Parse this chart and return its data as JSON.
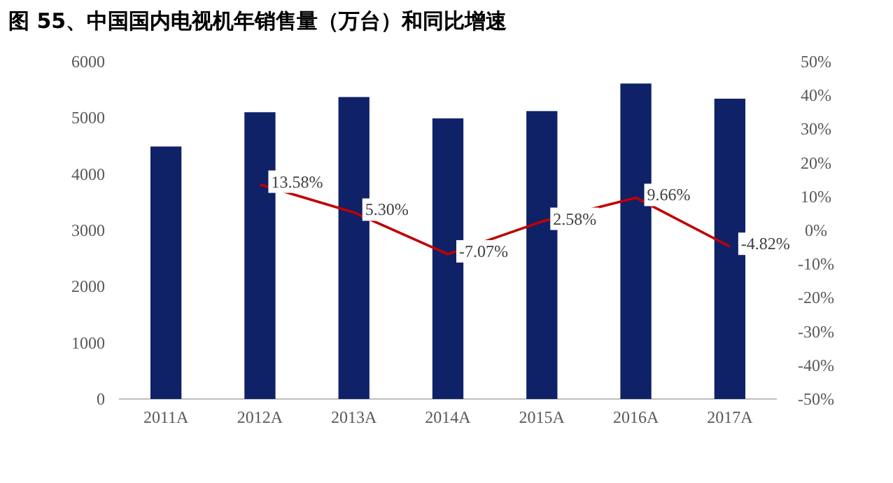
{
  "chart_data": {
    "type": "bar",
    "title": "图 55、中国国内电视机年销售量（万台）和同比增速",
    "categories": [
      "2011A",
      "2012A",
      "2013A",
      "2014A",
      "2015A",
      "2016A",
      "2017A"
    ],
    "series": [
      {
        "color": "#0f2167",
        "values": [
          4490,
          5100,
          5370,
          4990,
          5120,
          5610,
          5340
        ]
      },
      {
        "type": "line",
        "axis": "y2",
        "color": "#c00000",
        "values": [
          null,
          13.58,
          5.3,
          -7.07,
          2.58,
          9.66,
          -4.82
        ],
        "value_labels": [
          null,
          "13.58%",
          "5.30%",
          "-7.07%",
          "2.58%",
          "9.66%",
          "-4.82%"
        ]
      }
    ],
    "ylim": [
      0,
      6000
    ],
    "yticks": [
      0,
      1000,
      2000,
      3000,
      4000,
      5000,
      6000
    ],
    "y2lim": [
      -50,
      50
    ],
    "y2ticks": [
      {
        "value": -50,
        "label": "-50%"
      },
      {
        "value": -40,
        "label": "-40%"
      },
      {
        "value": -30,
        "label": "-30%"
      },
      {
        "value": -20,
        "label": "-20%"
      },
      {
        "value": -10,
        "label": "-10%"
      },
      {
        "value": 0,
        "label": "0%"
      },
      {
        "value": 10,
        "label": "10%"
      },
      {
        "value": 20,
        "label": "20%"
      },
      {
        "value": 30,
        "label": "30%"
      },
      {
        "value": 40,
        "label": "40%"
      },
      {
        "value": 50,
        "label": "50%"
      }
    ],
    "grid": false,
    "marker": "none",
    "line_style": "solid"
  }
}
